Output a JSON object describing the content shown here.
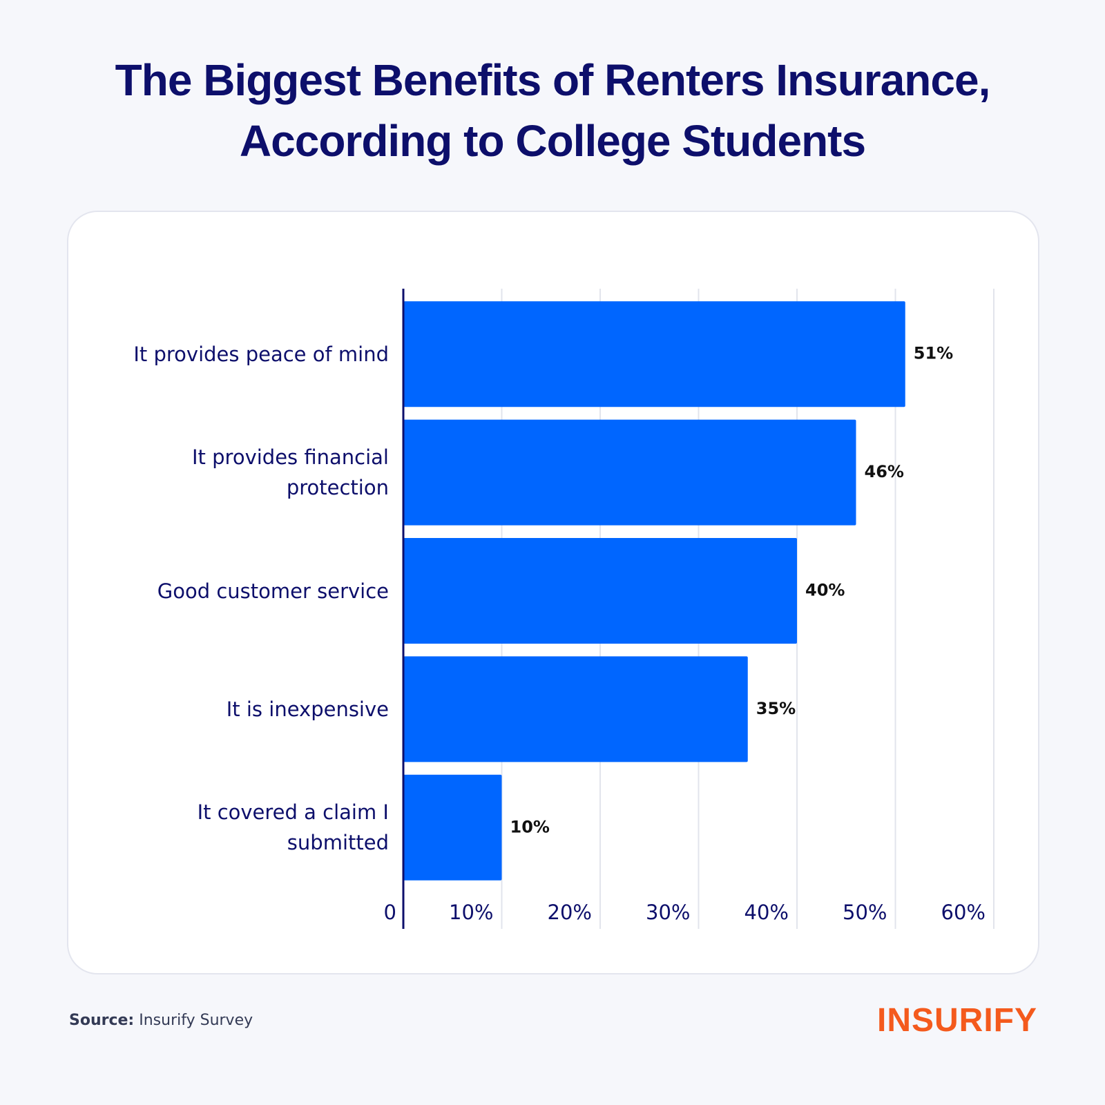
{
  "chart_data": {
    "type": "bar",
    "orientation": "horizontal",
    "title": "The Biggest Benefits of Renters Insurance, According to College Students",
    "categories": [
      "It provides peace of mind",
      "It provides financial protection",
      "Good customer service",
      "It is inexpensive",
      "It covered a claim I submitted"
    ],
    "values": [
      51,
      46,
      40,
      35,
      10
    ],
    "value_labels": [
      "51%",
      "46%",
      "40%",
      "35%",
      "10%"
    ],
    "color": "#0066ff",
    "xlim": [
      0,
      60
    ],
    "xticks": [
      0,
      {
        "value": 10,
        "label": "10%"
      },
      {
        "value": 20,
        "label": "20%"
      },
      {
        "value": 30,
        "label": "30%"
      },
      {
        "value": 40,
        "label": "40%"
      },
      {
        "value": 50,
        "label": "50%"
      },
      {
        "value": 60,
        "label": "60%"
      }
    ],
    "grid": true,
    "source_label": "Source:",
    "source": "Insurify Survey",
    "brand": "INSURIFY"
  }
}
